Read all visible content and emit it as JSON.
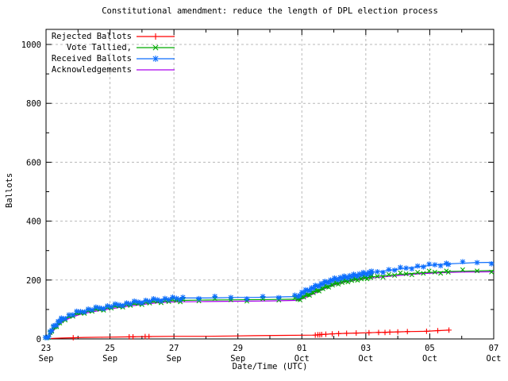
{
  "chart_data": {
    "type": "line",
    "title": "Constitutional amendment: reduce the length of DPL election process",
    "xlabel": "Date/Time (UTC)",
    "ylabel": "Ballots",
    "grid": true,
    "legend_position": "top-left",
    "background_color": "#ffffff",
    "grid_color": "#b8b8b8",
    "axis_color": "#000000",
    "x_range_days": [
      0,
      14
    ],
    "ylim": [
      0,
      1050
    ],
    "y_ticks": [
      0,
      200,
      400,
      600,
      800,
      1000
    ],
    "y_minor_ticks": [
      100,
      300,
      500,
      700,
      900
    ],
    "x_ticks": [
      {
        "day": 0,
        "line1": "23",
        "line2": "Sep"
      },
      {
        "day": 2,
        "line1": "25",
        "line2": "Sep"
      },
      {
        "day": 4,
        "line1": "27",
        "line2": "Sep"
      },
      {
        "day": 6,
        "line1": "29",
        "line2": "Sep"
      },
      {
        "day": 8,
        "line1": "01",
        "line2": "Oct"
      },
      {
        "day": 10,
        "line1": "03",
        "line2": "Oct"
      },
      {
        "day": 12,
        "line1": "05",
        "line2": "Oct"
      },
      {
        "day": 14,
        "line1": "07",
        "line2": "Oct"
      }
    ],
    "x_minor_tick_days": [
      1,
      3,
      5,
      7,
      9,
      11,
      13
    ],
    "series": [
      {
        "name": "Rejected Ballots",
        "color": "#ff0000",
        "marker": "plus",
        "points": [
          [
            0,
            0
          ],
          [
            0.2,
            2
          ],
          [
            0.5,
            3
          ],
          [
            0.85,
            4
          ],
          [
            1.2,
            5
          ],
          [
            1.8,
            6
          ],
          [
            2.6,
            7
          ],
          [
            3.2,
            8
          ],
          [
            4,
            9
          ],
          [
            5,
            9
          ],
          [
            5.8,
            10
          ],
          [
            6.5,
            11
          ],
          [
            7.5,
            12
          ],
          [
            8.4,
            13
          ],
          [
            8.5,
            14
          ],
          [
            8.6,
            15
          ],
          [
            8.75,
            16
          ],
          [
            8.9,
            17
          ],
          [
            9.1,
            18
          ],
          [
            9.35,
            19
          ],
          [
            9.7,
            20
          ],
          [
            10.1,
            21
          ],
          [
            10.35,
            22
          ],
          [
            10.7,
            23
          ],
          [
            11,
            24
          ],
          [
            11.4,
            25
          ],
          [
            11.9,
            26
          ],
          [
            12.2,
            28
          ],
          [
            12.6,
            30
          ]
        ],
        "marker_points": [
          [
            0.85,
            4
          ],
          [
            2.6,
            7
          ],
          [
            2.72,
            7
          ],
          [
            3.1,
            8
          ],
          [
            3.22,
            8
          ],
          [
            8.42,
            13
          ],
          [
            8.5,
            14
          ],
          [
            8.56,
            14
          ],
          [
            8.62,
            15
          ],
          [
            8.75,
            16
          ],
          [
            8.95,
            17
          ],
          [
            9.15,
            18
          ],
          [
            9.4,
            19
          ],
          [
            9.7,
            20
          ],
          [
            10.1,
            21
          ],
          [
            10.4,
            22
          ],
          [
            10.6,
            22
          ],
          [
            10.75,
            23
          ],
          [
            11.0,
            24
          ],
          [
            11.3,
            25
          ],
          [
            11.9,
            26
          ],
          [
            12.25,
            28
          ],
          [
            12.6,
            30
          ]
        ]
      },
      {
        "name": "Vote Tallied,",
        "color": "#00aa00",
        "marker": "cross",
        "points": [
          [
            0,
            0
          ],
          [
            0.05,
            3
          ],
          [
            0.1,
            10
          ],
          [
            0.15,
            19
          ],
          [
            0.2,
            28
          ],
          [
            0.3,
            41
          ],
          [
            0.4,
            52
          ],
          [
            0.5,
            61
          ],
          [
            0.6,
            68
          ],
          [
            0.8,
            77
          ],
          [
            1,
            85
          ],
          [
            1.2,
            91
          ],
          [
            1.5,
            97
          ],
          [
            1.8,
            102
          ],
          [
            2,
            106
          ],
          [
            2.5,
            114
          ],
          [
            3,
            121
          ],
          [
            3.5,
            127
          ],
          [
            4,
            130
          ],
          [
            4.3,
            131
          ],
          [
            5,
            132
          ],
          [
            6,
            133
          ],
          [
            7,
            134
          ],
          [
            7.9,
            135
          ],
          [
            8,
            140
          ],
          [
            8.2,
            150
          ],
          [
            8.4,
            160
          ],
          [
            8.6,
            169
          ],
          [
            8.8,
            178
          ],
          [
            9,
            186
          ],
          [
            9.2,
            192
          ],
          [
            9.4,
            197
          ],
          [
            9.6,
            201
          ],
          [
            9.8,
            205
          ],
          [
            10,
            208
          ],
          [
            10.3,
            212
          ],
          [
            10.6,
            215
          ],
          [
            11,
            219
          ],
          [
            11.4,
            222
          ],
          [
            11.8,
            225
          ],
          [
            12.2,
            227
          ],
          [
            12.6,
            229
          ],
          [
            13,
            230
          ],
          [
            13.4,
            231
          ],
          [
            14,
            232
          ]
        ],
        "marker_rule": [
          [
            0,
            0.5,
            0.05
          ],
          [
            0.5,
            4.3,
            0.12
          ],
          [
            4.3,
            7.9,
            0.5
          ],
          [
            7.9,
            10.2,
            0.06
          ],
          [
            10.2,
            12.6,
            0.18
          ],
          [
            12.6,
            14,
            0.45
          ]
        ]
      },
      {
        "name": "Received Ballots",
        "color": "#0d6efd",
        "marker": "star",
        "points": [
          [
            0,
            0
          ],
          [
            0.05,
            4
          ],
          [
            0.1,
            12
          ],
          [
            0.15,
            22
          ],
          [
            0.2,
            32
          ],
          [
            0.3,
            46
          ],
          [
            0.4,
            57
          ],
          [
            0.5,
            66
          ],
          [
            0.6,
            73
          ],
          [
            0.8,
            82
          ],
          [
            1,
            90
          ],
          [
            1.2,
            96
          ],
          [
            1.5,
            102
          ],
          [
            1.8,
            107
          ],
          [
            2,
            111
          ],
          [
            2.5,
            119
          ],
          [
            3,
            127
          ],
          [
            3.5,
            133
          ],
          [
            4,
            137
          ],
          [
            4.3,
            139
          ],
          [
            5,
            139
          ],
          [
            5.5,
            140
          ],
          [
            6,
            141
          ],
          [
            6.5,
            141
          ],
          [
            7,
            142
          ],
          [
            7.5,
            143
          ],
          [
            7.9,
            144
          ],
          [
            7.95,
            152
          ],
          [
            8.1,
            160
          ],
          [
            8.3,
            170
          ],
          [
            8.5,
            180
          ],
          [
            8.7,
            189
          ],
          [
            8.9,
            197
          ],
          [
            9,
            201
          ],
          [
            9.2,
            206
          ],
          [
            9.4,
            210
          ],
          [
            9.6,
            214
          ],
          [
            9.8,
            218
          ],
          [
            10,
            222
          ],
          [
            10.3,
            227
          ],
          [
            10.6,
            231
          ],
          [
            11,
            237
          ],
          [
            11.4,
            242
          ],
          [
            11.8,
            247
          ],
          [
            12.2,
            252
          ],
          [
            12.6,
            255
          ],
          [
            13,
            257
          ],
          [
            13.4,
            259
          ],
          [
            14,
            260
          ]
        ],
        "marker_rule": [
          [
            0,
            0.5,
            0.05
          ],
          [
            0.5,
            4.3,
            0.12
          ],
          [
            4.3,
            7.9,
            0.5
          ],
          [
            7.9,
            10.2,
            0.06
          ],
          [
            10.2,
            12.6,
            0.18
          ],
          [
            12.6,
            14,
            0.45
          ]
        ]
      },
      {
        "name": "Acknowledgements",
        "color": "#aa00ee",
        "marker": "none",
        "points": [
          [
            0,
            0
          ],
          [
            0.1,
            8
          ],
          [
            0.2,
            24
          ],
          [
            0.3,
            37
          ],
          [
            0.4,
            48
          ],
          [
            0.5,
            57
          ],
          [
            0.6,
            64
          ],
          [
            0.8,
            73
          ],
          [
            1,
            81
          ],
          [
            1.2,
            87
          ],
          [
            1.5,
            93
          ],
          [
            2,
            102
          ],
          [
            2.5,
            110
          ],
          [
            3,
            117
          ],
          [
            3.5,
            123
          ],
          [
            4,
            126
          ],
          [
            5,
            127
          ],
          [
            6,
            128
          ],
          [
            7,
            129
          ],
          [
            7.9,
            131
          ],
          [
            8.1,
            140
          ],
          [
            8.3,
            150
          ],
          [
            8.5,
            160
          ],
          [
            8.7,
            170
          ],
          [
            8.9,
            179
          ],
          [
            9.1,
            186
          ],
          [
            9.3,
            192
          ],
          [
            9.6,
            198
          ],
          [
            9.8,
            202
          ],
          [
            10,
            205
          ],
          [
            10.3,
            208
          ],
          [
            10.6,
            211
          ],
          [
            11,
            215
          ],
          [
            11.4,
            219
          ],
          [
            11.8,
            222
          ],
          [
            12.2,
            224
          ],
          [
            12.6,
            226
          ],
          [
            13,
            227
          ],
          [
            14,
            228
          ]
        ]
      }
    ]
  },
  "legend": {
    "items": [
      {
        "label": "Rejected Ballots"
      },
      {
        "label": "Vote Tallied,"
      },
      {
        "label": "Received Ballots"
      },
      {
        "label": "Acknowledgements"
      }
    ]
  }
}
